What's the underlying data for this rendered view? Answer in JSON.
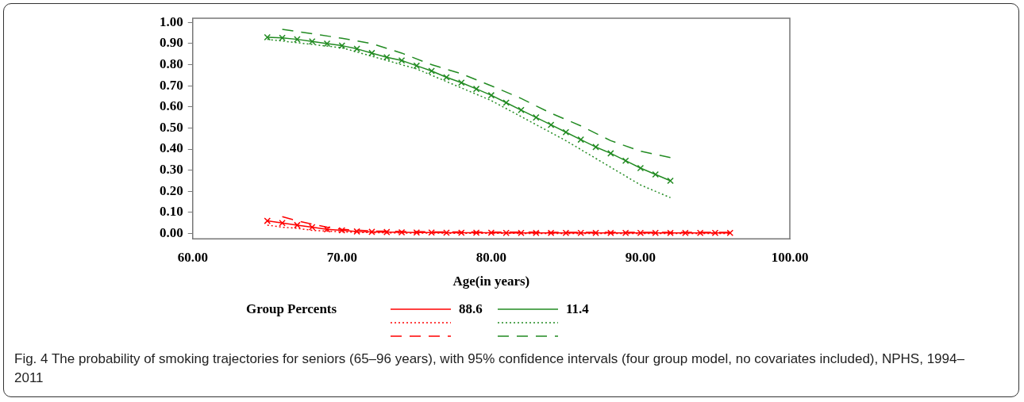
{
  "chart_data": {
    "type": "line",
    "xlabel": "Age(in years)",
    "legend_title": "Group Percents",
    "legend": "bottom",
    "grid": false,
    "xlim": [
      60,
      100
    ],
    "xticks": [
      {
        "value": 60,
        "label": "60.00"
      },
      {
        "value": 70,
        "label": "70.00"
      },
      {
        "value": 80,
        "label": "80.00"
      },
      {
        "value": 90,
        "label": "90.00"
      },
      {
        "value": 100,
        "label": "100.00"
      }
    ],
    "ylim": [
      -0.025,
      1.02
    ],
    "yticks": [
      {
        "value": 0,
        "label": "0.00"
      },
      {
        "value": 0.1,
        "label": "0.10"
      },
      {
        "value": 0.2,
        "label": "0.20"
      },
      {
        "value": 0.3,
        "label": "0.30"
      },
      {
        "value": 0.4,
        "label": "0.40"
      },
      {
        "value": 0.5,
        "label": "0.50"
      },
      {
        "value": 0.6,
        "label": "0.60"
      },
      {
        "value": 0.7,
        "label": "0.70"
      },
      {
        "value": 0.8,
        "label": "0.80"
      },
      {
        "value": 0.9,
        "label": "0.90"
      },
      {
        "value": 1,
        "label": "1.00"
      }
    ],
    "series": [
      {
        "name": "88.6",
        "color": "#ff0000",
        "marker": "cross",
        "line_style": "solid",
        "x": [
          65,
          66,
          67,
          68,
          69,
          70,
          71,
          72,
          73,
          74,
          75,
          76,
          77,
          78,
          79,
          80,
          81,
          82,
          83,
          84,
          85,
          86,
          87,
          88,
          89,
          90,
          91,
          92,
          93,
          94,
          95,
          96
        ],
        "values": [
          0.06,
          0.05,
          0.04,
          0.03,
          0.02,
          0.015,
          0.01,
          0.008,
          0.007,
          0.006,
          0.005,
          0.005,
          0.004,
          0.004,
          0.004,
          0.004,
          0.003,
          0.003,
          0.003,
          0.003,
          0.003,
          0.003,
          0.003,
          0.003,
          0.003,
          0.003,
          0.003,
          0.003,
          0.003,
          0.003,
          0.003,
          0.003
        ]
      },
      {
        "color": "#ff0000",
        "marker": "none",
        "line_style": "dotted",
        "x": [
          65,
          66,
          67,
          68,
          70,
          72,
          75,
          80,
          85,
          90,
          96
        ],
        "values": [
          0.04,
          0.03,
          0.025,
          0.015,
          0.008,
          0.004,
          0.002,
          0.001,
          0,
          0,
          0
        ]
      },
      {
        "color": "#ff0000",
        "marker": "none",
        "line_style": "dashed",
        "x": [
          66,
          67,
          68,
          69,
          70,
          72,
          74,
          76,
          80,
          85,
          90,
          96
        ],
        "values": [
          0.08,
          0.06,
          0.045,
          0.03,
          0.02,
          0.012,
          0.01,
          0.008,
          0.007,
          0.006,
          0.006,
          0.006
        ]
      },
      {
        "name": "11.4",
        "color": "#228b22",
        "marker": "cross",
        "line_style": "solid",
        "x": [
          65,
          66,
          67,
          68,
          69,
          70,
          71,
          72,
          73,
          74,
          75,
          76,
          77,
          78,
          79,
          80,
          81,
          82,
          83,
          84,
          85,
          86,
          87,
          88,
          89,
          90,
          91,
          92
        ],
        "values": [
          0.93,
          0.927,
          0.92,
          0.91,
          0.9,
          0.89,
          0.875,
          0.855,
          0.835,
          0.82,
          0.795,
          0.77,
          0.74,
          0.715,
          0.685,
          0.655,
          0.62,
          0.585,
          0.55,
          0.515,
          0.48,
          0.445,
          0.41,
          0.38,
          0.345,
          0.31,
          0.28,
          0.25
        ]
      },
      {
        "color": "#228b22",
        "marker": "none",
        "line_style": "dotted",
        "x": [
          65,
          70,
          75,
          80,
          85,
          90,
          92
        ],
        "values": [
          0.92,
          0.88,
          0.78,
          0.63,
          0.44,
          0.23,
          0.17
        ]
      },
      {
        "color": "#228b22",
        "marker": "none",
        "line_style": "dashed",
        "x": [
          66,
          68,
          70,
          72,
          74,
          76,
          78,
          80,
          82,
          84,
          86,
          88,
          90,
          92
        ],
        "values": [
          0.967,
          0.947,
          0.925,
          0.9,
          0.855,
          0.8,
          0.757,
          0.7,
          0.64,
          0.57,
          0.51,
          0.44,
          0.39,
          0.36
        ]
      }
    ],
    "annotations": [
      "Fig. 4 The probability of smoking trajectories for seniors (65–96 years), with 95% confidence intervals (four group model, no covariates included), NPHS, 1994–2011"
    ]
  }
}
